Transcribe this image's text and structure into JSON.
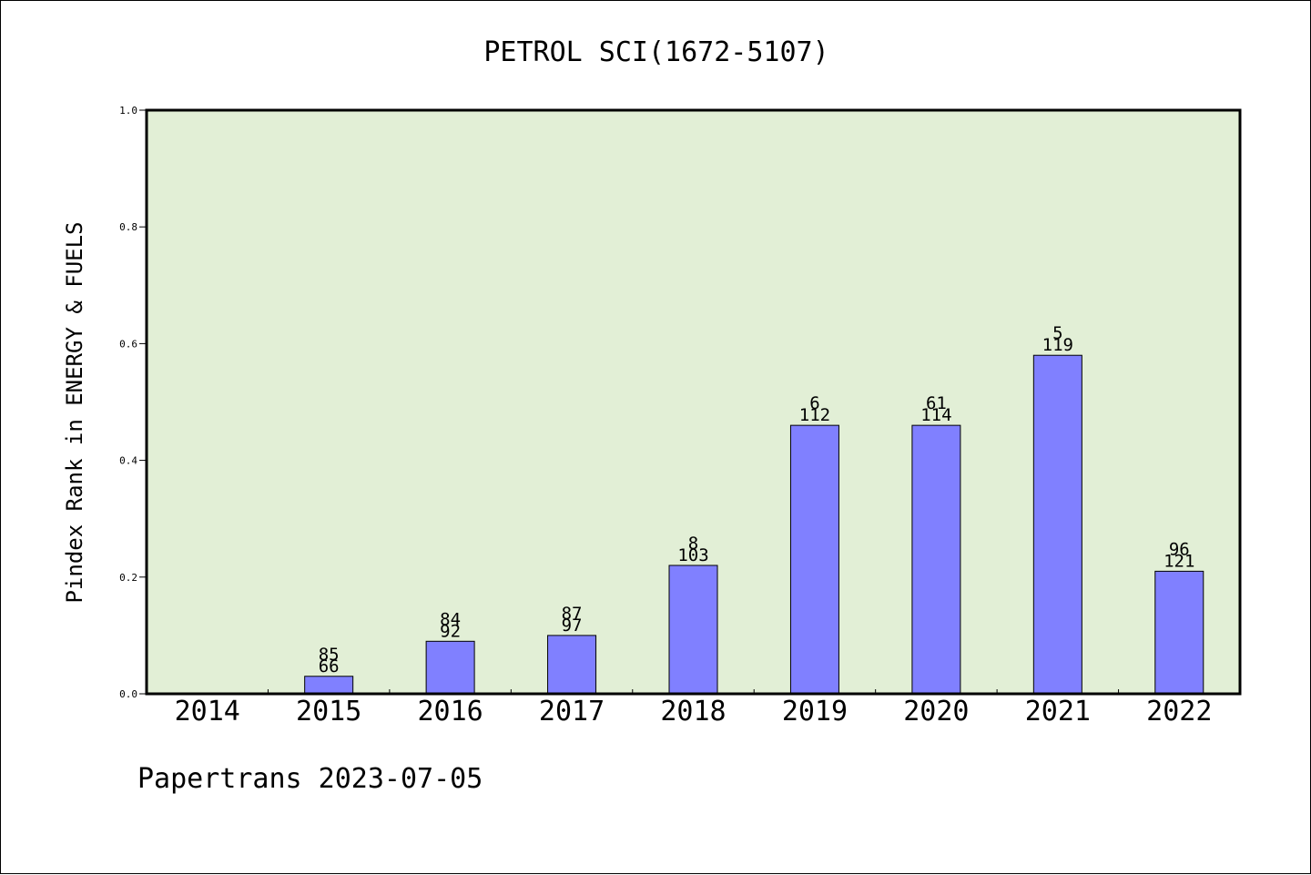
{
  "chart_data": {
    "type": "bar",
    "title": "PETROL SCI(1672-5107)",
    "ylabel": "Pindex Rank in ENERGY & FUELS",
    "xlabel": "",
    "ylim": [
      0,
      1.0
    ],
    "yticks": [
      0.0,
      0.2,
      0.4,
      0.6,
      0.8,
      1.0
    ],
    "ytick_labels": [
      "0.0",
      "0.2",
      "0.4",
      "0.6",
      "0.8",
      "1.0"
    ],
    "categories": [
      "2014",
      "2015",
      "2016",
      "2017",
      "2018",
      "2019",
      "2020",
      "2021",
      "2022"
    ],
    "values": [
      null,
      0.03,
      0.09,
      0.1,
      0.22,
      0.46,
      0.46,
      0.58,
      0.21
    ],
    "label_top": [
      "",
      "85",
      "84",
      "87",
      "8",
      "6",
      "61",
      "5",
      "96"
    ],
    "label_bottom": [
      "",
      "66",
      "92",
      "97",
      "103",
      "112",
      "114",
      "119",
      "121"
    ],
    "grid": false,
    "legend": "none"
  },
  "footer": "Papertrans 2023-07-05",
  "colors": {
    "plot_background": "#e2efd6",
    "bar_fill": "#8080ff",
    "bar_stroke": "#000000",
    "axis": "#000000",
    "text": "#000000"
  }
}
